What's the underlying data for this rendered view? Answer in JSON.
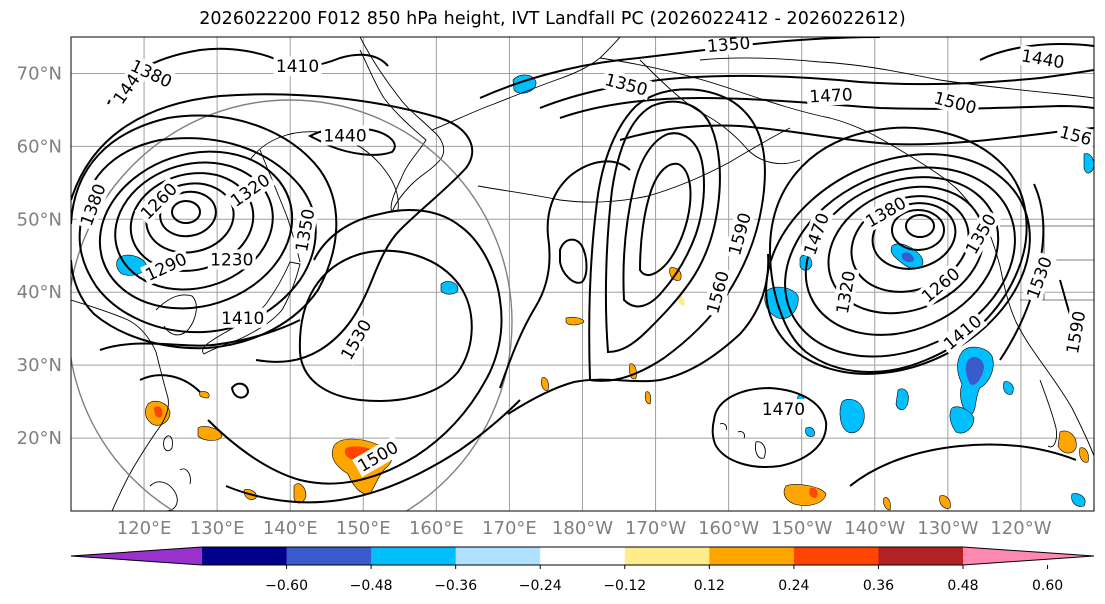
{
  "figure": {
    "title": "2026022200 F012 850 hPa height, IVT Landfall PC (2026022412 - 2026022612)"
  },
  "map": {
    "projection": "equirectangular",
    "lon_range_deg_east": [
      110,
      250
    ],
    "lat_range": [
      10,
      75
    ],
    "lat_ticks": [
      {
        "value": 70,
        "label": "70°N"
      },
      {
        "value": 60,
        "label": "60°N"
      },
      {
        "value": 50,
        "label": "50°N"
      },
      {
        "value": 40,
        "label": "40°N"
      },
      {
        "value": 30,
        "label": "30°N"
      },
      {
        "value": 20,
        "label": "20°N"
      }
    ],
    "lon_ticks": [
      {
        "value": 120,
        "label": "120°E"
      },
      {
        "value": 130,
        "label": "130°E"
      },
      {
        "value": 140,
        "label": "140°E"
      },
      {
        "value": 150,
        "label": "150°E"
      },
      {
        "value": 160,
        "label": "160°E"
      },
      {
        "value": 170,
        "label": "170°E"
      },
      {
        "value": 180,
        "label": "180°W"
      },
      {
        "value": 190,
        "label": "170°W"
      },
      {
        "value": 200,
        "label": "160°W"
      },
      {
        "value": 210,
        "label": "150°W"
      },
      {
        "value": 220,
        "label": "140°W"
      },
      {
        "value": 230,
        "label": "130°W"
      },
      {
        "value": 240,
        "label": "120°W"
      }
    ],
    "contour_labels": [
      {
        "text": "1440",
        "lon": 118,
        "lat": 68.5,
        "rot": -55
      },
      {
        "text": "1380",
        "lon": 121,
        "lat": 70,
        "rot": 25
      },
      {
        "text": "1410",
        "lon": 141,
        "lat": 71,
        "rot": 0
      },
      {
        "text": "1350",
        "lon": 200,
        "lat": 74,
        "rot": -5
      },
      {
        "text": "1350",
        "lon": 186,
        "lat": 68.5,
        "rot": 15
      },
      {
        "text": "1470",
        "lon": 214,
        "lat": 67,
        "rot": -3
      },
      {
        "text": "1500",
        "lon": 231,
        "lat": 66,
        "rot": 15
      },
      {
        "text": "1440",
        "lon": 243,
        "lat": 72,
        "rot": 10
      },
      {
        "text": "156",
        "lon": 247.5,
        "lat": 61.5,
        "rot": 15
      },
      {
        "text": "1440",
        "lon": 147.5,
        "lat": 61.5,
        "rot": 0
      },
      {
        "text": "1380",
        "lon": 113,
        "lat": 52,
        "rot": -70
      },
      {
        "text": "1260",
        "lon": 122,
        "lat": 52.5,
        "rot": -45
      },
      {
        "text": "1320",
        "lon": 134.5,
        "lat": 54,
        "rot": -35
      },
      {
        "text": "1350",
        "lon": 142,
        "lat": 48.5,
        "rot": -80
      },
      {
        "text": "1230",
        "lon": 132,
        "lat": 44.5,
        "rot": 0
      },
      {
        "text": "1290",
        "lon": 123,
        "lat": 43.5,
        "rot": -25
      },
      {
        "text": "1410",
        "lon": 133.5,
        "lat": 36.5,
        "rot": 0
      },
      {
        "text": "1530",
        "lon": 149,
        "lat": 33.5,
        "rot": -60
      },
      {
        "text": "1560",
        "lon": 198.5,
        "lat": 40,
        "rot": -75
      },
      {
        "text": "1590",
        "lon": 201.5,
        "lat": 48,
        "rot": -75
      },
      {
        "text": "1470",
        "lon": 212,
        "lat": 48,
        "rot": -70
      },
      {
        "text": "1380",
        "lon": 221.5,
        "lat": 51,
        "rot": -30
      },
      {
        "text": "1320",
        "lon": 216,
        "lat": 40,
        "rot": -80
      },
      {
        "text": "1260",
        "lon": 229,
        "lat": 41,
        "rot": -40
      },
      {
        "text": "1350",
        "lon": 234.5,
        "lat": 48,
        "rot": -60
      },
      {
        "text": "1410",
        "lon": 232,
        "lat": 34.5,
        "rot": -40
      },
      {
        "text": "1530",
        "lon": 242.5,
        "lat": 42,
        "rot": -70
      },
      {
        "text": "1590",
        "lon": 247.5,
        "lat": 34.5,
        "rot": -80
      },
      {
        "text": "1470",
        "lon": 207.5,
        "lat": 24,
        "rot": 0
      },
      {
        "text": "1500",
        "lon": 152,
        "lat": 17.5,
        "rot": -30
      }
    ]
  },
  "colorbar": {
    "ticks": [
      "−0.60",
      "−0.48",
      "−0.36",
      "−0.24",
      "−0.12",
      "0.12",
      "0.24",
      "0.36",
      "0.48",
      "0.60"
    ],
    "colors": [
      "#9932cc",
      "#00008b",
      "#3a5bcd",
      "#00bfff",
      "#b0e2ff",
      "#ffffff",
      "#ffec8b",
      "#ffa500",
      "#ff4500",
      "#b22222",
      "#ff88b0"
    ]
  }
}
